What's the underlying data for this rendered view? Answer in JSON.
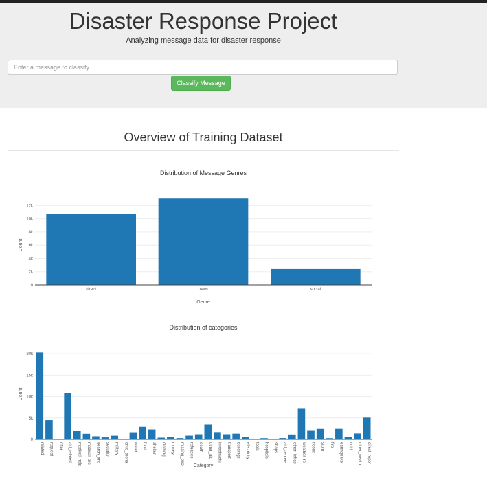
{
  "header": {
    "title": "Disaster Response Project",
    "subtitle": "Analyzing message data for disaster response",
    "input_placeholder": "Enter a message to classify",
    "button_label": "Classify Message"
  },
  "main": {
    "section_title": "Overview of Training Dataset"
  },
  "colors": {
    "bar": "#1f77b4",
    "button": "#5cb85c",
    "jumbotron": "#eeeeee"
  },
  "chart_data": [
    {
      "type": "bar",
      "title": "Distribution of Message Genres",
      "xlabel": "Genre",
      "ylabel": "Count",
      "categories": [
        "direct",
        "news",
        "social"
      ],
      "values": [
        10766,
        13054,
        2396
      ],
      "ylim": [
        0,
        13700
      ],
      "yticks": [
        0,
        2000,
        4000,
        6000,
        8000,
        10000,
        12000
      ],
      "ytick_labels": [
        "0",
        "2k",
        "4k",
        "6k",
        "8k",
        "10k",
        "12k"
      ],
      "grid": true
    },
    {
      "type": "bar",
      "title": "Distribution of categories",
      "xlabel": "Category",
      "ylabel": "Count",
      "categories": [
        "related",
        "request",
        "offer",
        "aid_related",
        "medical_help",
        "medical_pro",
        "search_and",
        "security",
        "military",
        "child_alone",
        "water",
        "food",
        "shelter",
        "clothing",
        "money",
        "missing_peo",
        "refugees",
        "death",
        "other_aid",
        "infrastructu",
        "transport",
        "buildings",
        "electricity",
        "tools",
        "hospitals",
        "shops",
        "aid_centers",
        "other_infras",
        "weather_rel",
        "floods",
        "storm",
        "fire",
        "earthquake",
        "cold",
        "other_weath",
        "direct_repor"
      ],
      "values": [
        20282,
        4474,
        118,
        10860,
        2084,
        1313,
        724,
        471,
        860,
        0,
        1672,
        2923,
        2314,
        405,
        604,
        298,
        875,
        1194,
        3446,
        1705,
        1201,
        1333,
        532,
        159,
        283,
        120,
        309,
        1151,
        7297,
        2155,
        2443,
        282,
        2455,
        530,
        1376,
        5075
      ],
      "ylim": [
        0,
        20500
      ],
      "yticks": [
        0,
        5000,
        10000,
        15000,
        20000
      ],
      "ytick_labels": [
        "0",
        "5k",
        "10k",
        "15k",
        "20k"
      ],
      "grid": true
    }
  ]
}
